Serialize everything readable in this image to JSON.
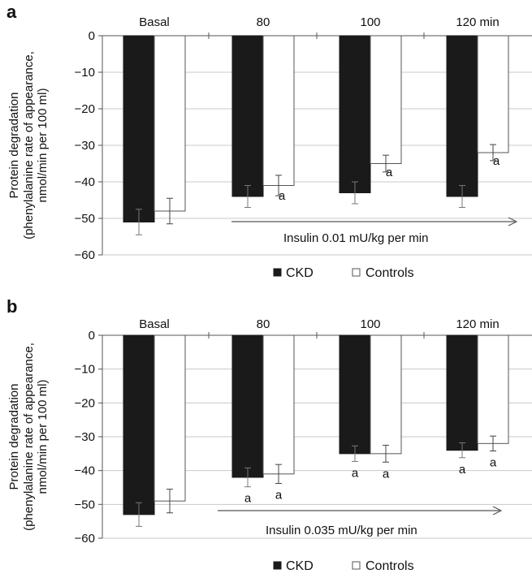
{
  "chart_data": [
    {
      "panel": "a",
      "type": "bar",
      "categories": [
        "Basal",
        "80",
        "100",
        "120 min"
      ],
      "series": [
        {
          "name": "CKD",
          "color": "#1a1a1a",
          "values": [
            -51,
            -44,
            -43,
            -44
          ],
          "errors": [
            3.5,
            3,
            3,
            3
          ],
          "sig": [
            "",
            "",
            "",
            ""
          ]
        },
        {
          "name": "Controls",
          "color": "#ffffff",
          "values": [
            -48,
            -41,
            -35,
            -32
          ],
          "errors": [
            3.5,
            2.8,
            2.3,
            2.2
          ],
          "sig": [
            "",
            "a",
            "a",
            "a"
          ]
        }
      ],
      "ylabel_lines": [
        "Protein degradation",
        "(phenylalanine rate of appearance,",
        "nmol/min per 100 ml)"
      ],
      "ylim": [
        -60,
        0
      ],
      "yticks": [
        "0",
        "-10",
        "-20",
        "-30",
        "-40",
        "-50",
        "-60"
      ],
      "annotation": "Insulin 0.01 mU/kg per min",
      "legend_position": "bottom-center"
    },
    {
      "panel": "b",
      "type": "bar",
      "categories": [
        "Basal",
        "80",
        "100",
        "120 min"
      ],
      "series": [
        {
          "name": "CKD",
          "color": "#1a1a1a",
          "values": [
            -53,
            -42,
            -35,
            -34
          ],
          "errors": [
            3.5,
            2.8,
            2.3,
            2.2
          ],
          "sig": [
            "",
            "a",
            "a",
            "a"
          ]
        },
        {
          "name": "Controls",
          "color": "#ffffff",
          "values": [
            -49,
            -41,
            -35,
            -32
          ],
          "errors": [
            3.5,
            2.8,
            2.5,
            2.2
          ],
          "sig": [
            "",
            "a",
            "a",
            "a"
          ]
        }
      ],
      "ylabel_lines": [
        "Protein degradation",
        "(phenylalanine rate of appearance,",
        "nmol/min per 100 ml)"
      ],
      "ylim": [
        -60,
        0
      ],
      "yticks": [
        "0",
        "-10",
        "-20",
        "-30",
        "-40",
        "-50",
        "-60"
      ],
      "annotation": "Insulin 0.035 mU/kg per min",
      "legend_position": "bottom-center"
    }
  ]
}
